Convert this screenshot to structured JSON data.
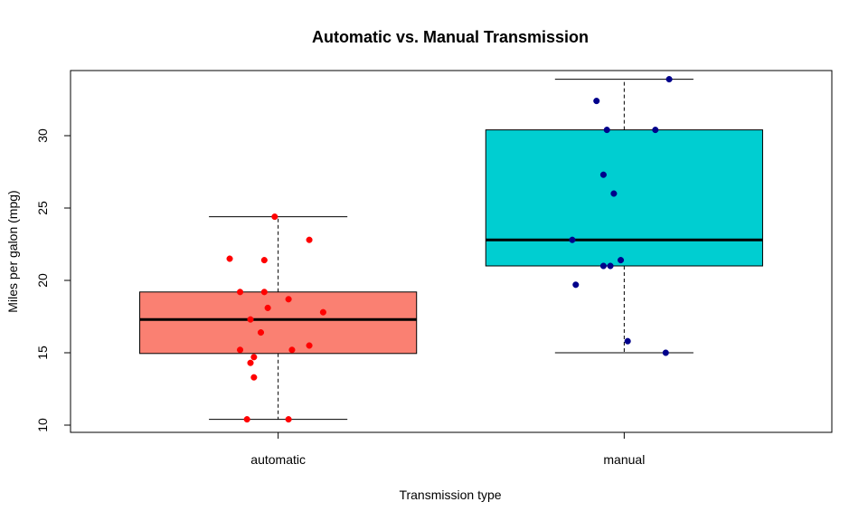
{
  "chart_data": {
    "type": "boxplot",
    "title": "Automatic vs. Manual Transmission",
    "xlabel": "Transmission type",
    "ylabel": "Miles per galon (mpg)",
    "ylim": [
      9.5,
      34.5
    ],
    "yticks": [
      10,
      15,
      20,
      25,
      30
    ],
    "categories": [
      "automatic",
      "manual"
    ],
    "groups": [
      {
        "name": "automatic",
        "box_color": "#FA8072",
        "point_color": "#FF0000",
        "whisker_low": 10.4,
        "q1": 14.95,
        "median": 17.3,
        "q3": 19.2,
        "whisker_high": 24.4,
        "points": [
          {
            "x_offset": -0.14,
            "y": 21.5
          },
          {
            "x_offset": -0.04,
            "y": 21.4
          },
          {
            "x_offset": 0.09,
            "y": 22.8
          },
          {
            "x_offset": -0.01,
            "y": 24.4
          },
          {
            "x_offset": -0.11,
            "y": 19.2
          },
          {
            "x_offset": -0.04,
            "y": 19.2
          },
          {
            "x_offset": 0.03,
            "y": 18.7
          },
          {
            "x_offset": -0.03,
            "y": 18.1
          },
          {
            "x_offset": 0.13,
            "y": 17.8
          },
          {
            "x_offset": -0.08,
            "y": 17.3
          },
          {
            "x_offset": -0.05,
            "y": 16.4
          },
          {
            "x_offset": 0.09,
            "y": 15.5
          },
          {
            "x_offset": -0.11,
            "y": 15.2
          },
          {
            "x_offset": 0.04,
            "y": 15.2
          },
          {
            "x_offset": -0.07,
            "y": 14.7
          },
          {
            "x_offset": -0.08,
            "y": 14.3
          },
          {
            "x_offset": -0.07,
            "y": 13.3
          },
          {
            "x_offset": -0.09,
            "y": 10.4
          },
          {
            "x_offset": 0.03,
            "y": 10.4
          }
        ]
      },
      {
        "name": "manual",
        "box_color": "#00CED1",
        "point_color": "#00008B",
        "whisker_low": 15.0,
        "q1": 21.0,
        "median": 22.8,
        "q3": 30.4,
        "whisker_high": 33.9,
        "points": [
          {
            "x_offset": 0.13,
            "y": 33.9
          },
          {
            "x_offset": -0.08,
            "y": 32.4
          },
          {
            "x_offset": -0.05,
            "y": 30.4
          },
          {
            "x_offset": 0.09,
            "y": 30.4
          },
          {
            "x_offset": -0.06,
            "y": 27.3
          },
          {
            "x_offset": -0.03,
            "y": 26.0
          },
          {
            "x_offset": -0.15,
            "y": 22.8
          },
          {
            "x_offset": -0.01,
            "y": 21.4
          },
          {
            "x_offset": -0.06,
            "y": 21.0
          },
          {
            "x_offset": -0.04,
            "y": 21.0
          },
          {
            "x_offset": -0.14,
            "y": 19.7
          },
          {
            "x_offset": 0.01,
            "y": 15.8
          },
          {
            "x_offset": 0.12,
            "y": 15.0
          }
        ]
      }
    ],
    "grid": false,
    "legend": "none"
  }
}
